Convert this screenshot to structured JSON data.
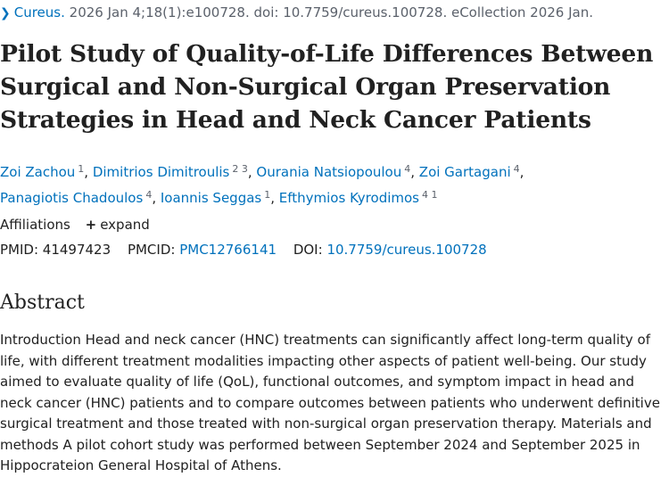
{
  "citation": {
    "chevron_icon": "chevron-right-icon",
    "journal": "Cureus.",
    "details": "2026 Jan 4;18(1):e100728. doi: 10.7759/cureus.100728. eCollection 2026 Jan."
  },
  "title": "Pilot Study of Quality-of-Life Differences Between Surgical and Non-Surgical Organ Preservation Strategies in Head and Neck Cancer Patients",
  "authors": [
    {
      "name": "Zoi Zachou",
      "sup": "1"
    },
    {
      "name": "Dimitrios Dimitroulis",
      "sup": "2 3"
    },
    {
      "name": "Ourania Natsiopoulou",
      "sup": "4"
    },
    {
      "name": "Zoi Gartagani",
      "sup": "4"
    },
    {
      "name": "Panagiotis Chadoulos",
      "sup": "4"
    },
    {
      "name": "Ioannis Seggas",
      "sup": "1"
    },
    {
      "name": "Efthymios Kyrodimos",
      "sup": "4 1"
    }
  ],
  "affiliations": {
    "label": "Affiliations",
    "expand_icon": "plus-icon",
    "expand_label": "expand"
  },
  "identifiers": {
    "pmid_label": "PMID:",
    "pmid": "41497423",
    "pmcid_label": "PMCID:",
    "pmcid": "PMC12766141",
    "doi_label": "DOI:",
    "doi": "10.7759/cureus.100728"
  },
  "abstract": {
    "heading": "Abstract",
    "text": "Introduction Head and neck cancer (HNC) treatments can significantly affect long-term quality of life, with different treatment modalities impacting other aspects of patient well-being. Our study aimed to evaluate quality of life (QoL), functional outcomes, and symptom impact in head and neck cancer (HNC) patients and to compare outcomes between patients who underwent definitive surgical treatment and those treated with non-surgical organ preservation therapy. Materials and methods A pilot cohort study was performed between September 2024 and September 2025 in Hippocrateion General Hospital of Athens."
  },
  "colors": {
    "link": "#0071bc",
    "text": "#212121",
    "muted": "#5b616b"
  }
}
